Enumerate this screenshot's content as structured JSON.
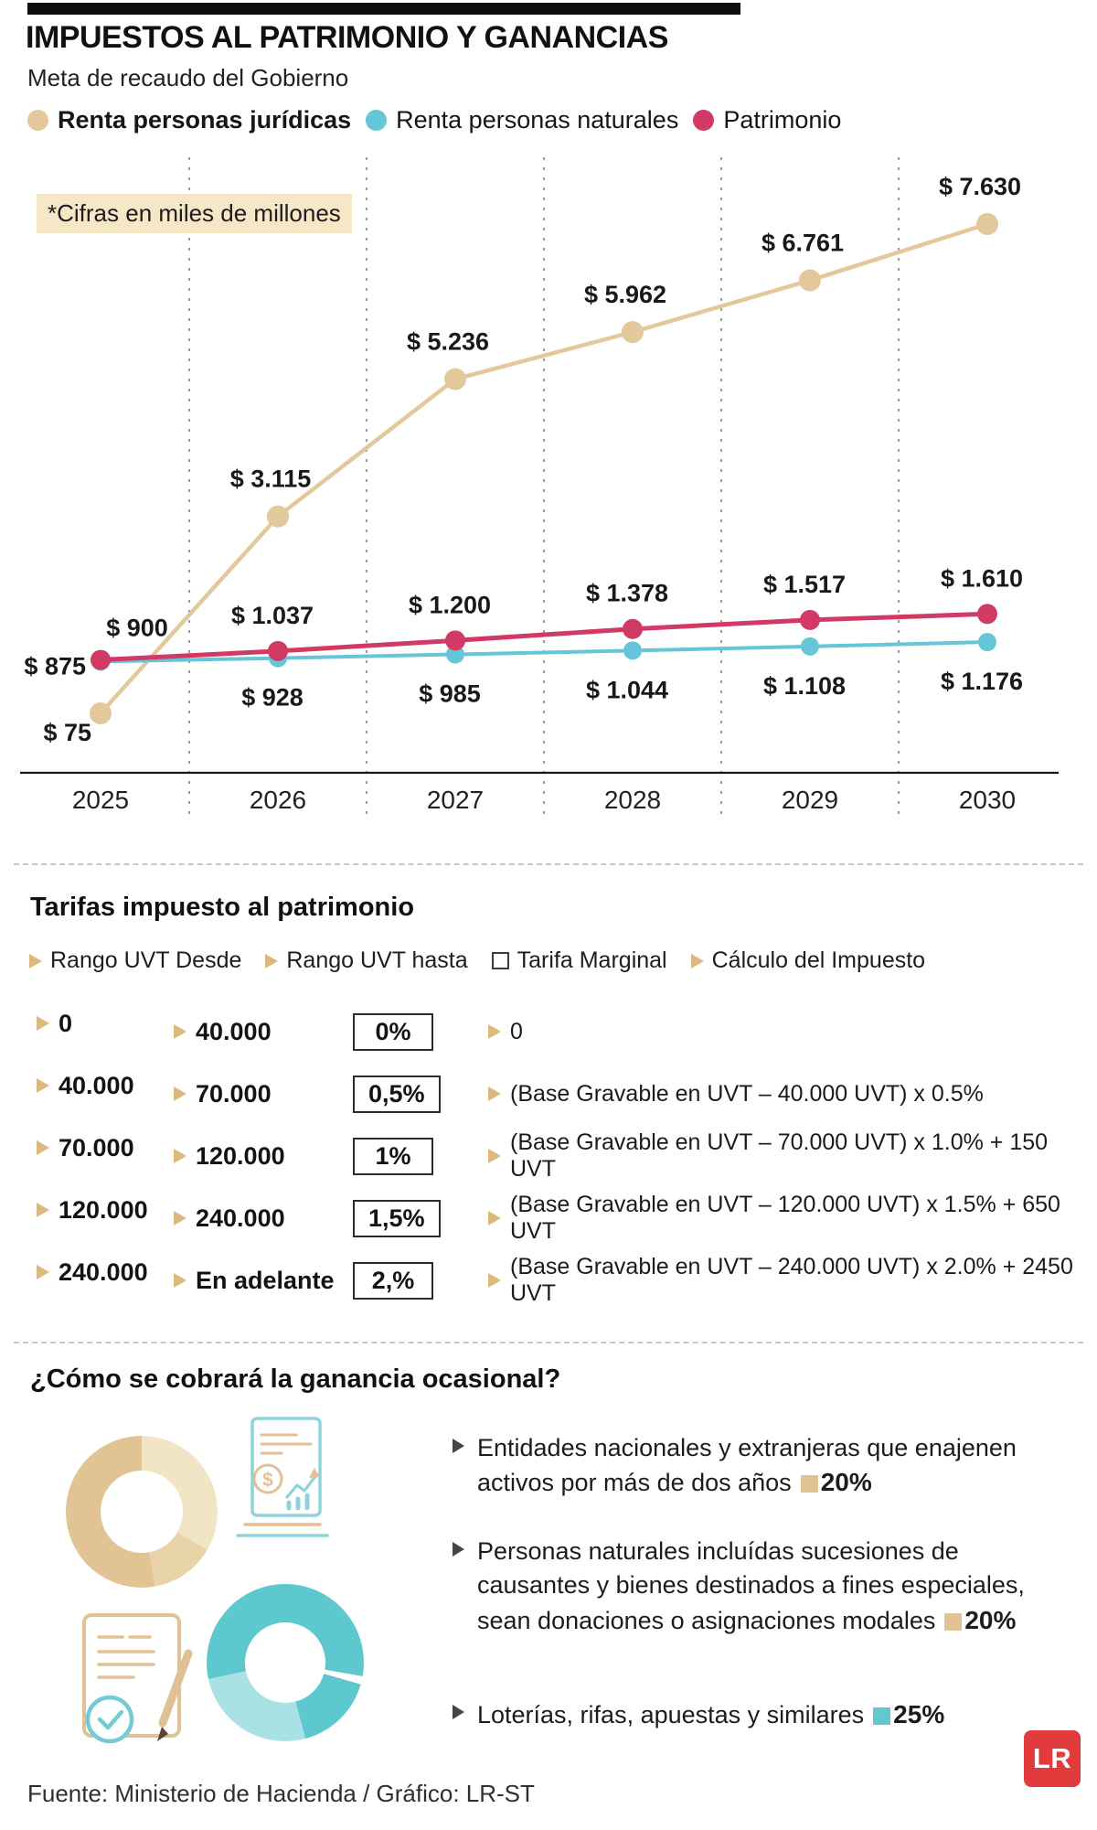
{
  "header": {
    "title": "IMPUESTOS AL PATRIMONIO Y GANANCIAS",
    "subtitle": "Meta de recaudo del Gobierno"
  },
  "chart_data": {
    "type": "line",
    "note": "*Cifras en miles de millones",
    "categories": [
      "2025",
      "2026",
      "2027",
      "2028",
      "2029",
      "2030"
    ],
    "series": [
      {
        "name": "Renta personas jurídicas",
        "color": "#e3c89b",
        "values": [
          75,
          3115,
          5236,
          5962,
          6761,
          7630
        ],
        "labels": [
          "$ 75",
          "$ 3.115",
          "$ 5.236",
          "$ 5.962",
          "$ 6.761",
          "$ 7.630"
        ]
      },
      {
        "name": "Renta personas naturales",
        "color": "#64c6d8",
        "values": [
          875,
          928,
          985,
          1044,
          1108,
          1176
        ],
        "labels": [
          "$ 875",
          "$ 928",
          "$ 985",
          "$ 1.044",
          "$ 1.108",
          "$ 1.176"
        ]
      },
      {
        "name": "Patrimonio",
        "color": "#d13a64",
        "values": [
          900,
          1037,
          1200,
          1378,
          1517,
          1610
        ],
        "labels": [
          "$ 900",
          "$ 1.037",
          "$ 1.200",
          "$ 1.378",
          "$ 1.517",
          "$ 1.610"
        ]
      }
    ],
    "ylim": [
      0,
      8000
    ],
    "grid": "vertical-dashed",
    "legend_position": "top"
  },
  "table": {
    "title": "Tarifas impuesto al patrimonio",
    "headers": [
      "Rango UVT Desde",
      "Rango UVT hasta",
      "Tarifa Marginal",
      "Cálculo del Impuesto"
    ],
    "rows": [
      {
        "from": "0",
        "to": "40.000",
        "rate": "0%",
        "calc": "0"
      },
      {
        "from": "40.000",
        "to": "70.000",
        "rate": "0,5%",
        "calc": "(Base Gravable en UVT – 40.000 UVT) x 0.5%"
      },
      {
        "from": "70.000",
        "to": "120.000",
        "rate": "1%",
        "calc": "(Base Gravable en UVT – 70.000 UVT) x 1.0% + 150 UVT"
      },
      {
        "from": "120.000",
        "to": "240.000",
        "rate": "1,5%",
        "calc": "(Base Gravable en UVT – 120.000 UVT) x 1.5% + 650 UVT"
      },
      {
        "from": "240.000",
        "to": "En adelante",
        "rate": "2,%",
        "calc": "(Base Gravable en UVT – 240.000 UVT) x 2.0% + 2450 UVT"
      }
    ]
  },
  "ganancia": {
    "title": "¿Cómo se cobrará la ganancia ocasional?",
    "bullets": [
      {
        "text": "Entidades nacionales y extranjeras que enajenen activos por más de dos años",
        "rate": "20%",
        "swatch": "beige"
      },
      {
        "text": "Personas naturales incluídas sucesiones de causantes y bienes destinados a fines especiales, sean donaciones o asignaciones modales",
        "rate": "20%",
        "swatch": "beige"
      },
      {
        "text": "Loterías, rifas, apuestas y similares",
        "rate": "25%",
        "swatch": "teal"
      }
    ]
  },
  "footer": {
    "source": "Fuente: Ministerio de Hacienda / Gráfico: LR-ST",
    "logo": "LR"
  },
  "colors": {
    "beige": "#e2c394",
    "teal": "#62c7ce",
    "crimson": "#d13a64",
    "logo_red": "#e23b3c",
    "note_bg": "#f6e7c6"
  }
}
